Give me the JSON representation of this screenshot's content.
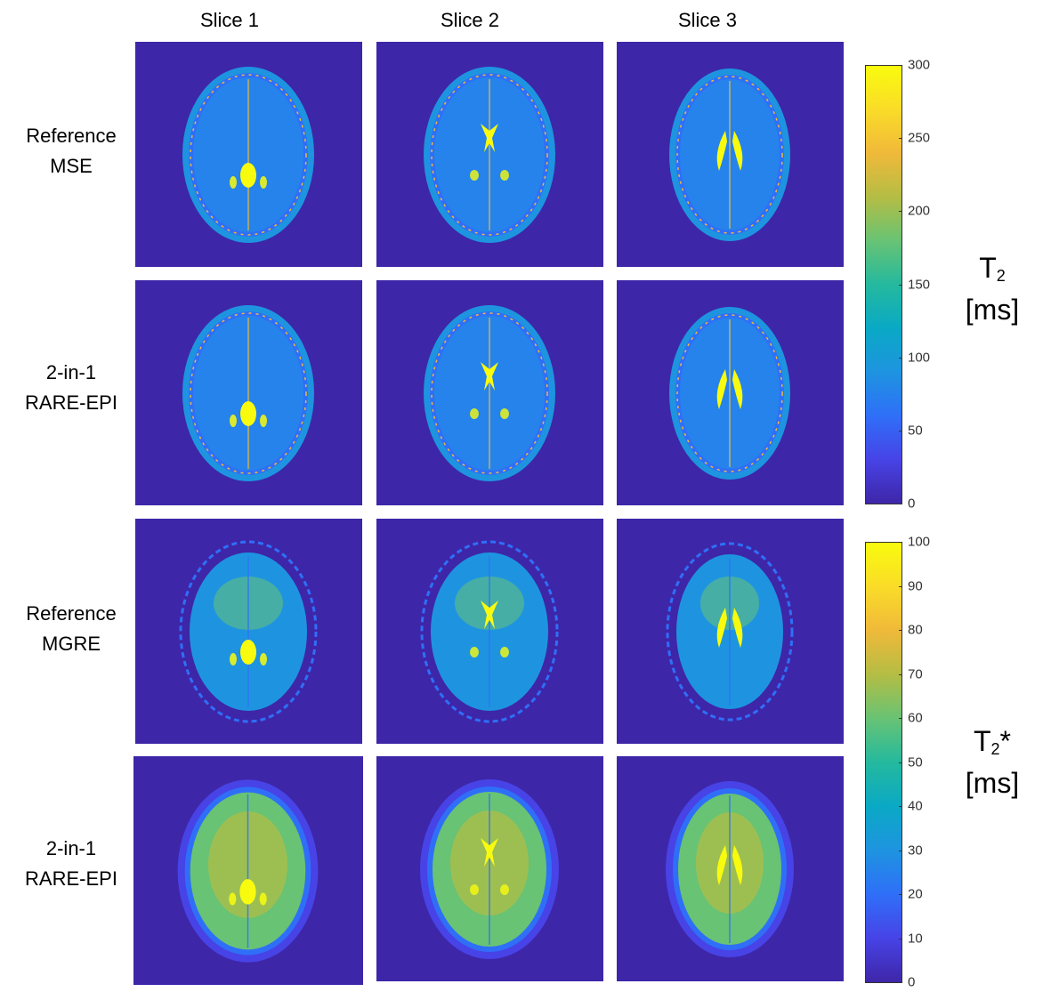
{
  "columns": [
    "Slice 1",
    "Slice 2",
    "Slice 3"
  ],
  "rows": [
    {
      "line1": "Reference",
      "line2": "MSE"
    },
    {
      "line1": "2-in-1",
      "line2": "RARE-EPI"
    },
    {
      "line1": "Reference",
      "line2": "MGRE"
    },
    {
      "line1": "2-in-1",
      "line2": "RARE-EPI"
    }
  ],
  "colorbar_t2": {
    "symbol": "T",
    "subscript": "2",
    "suffix": "",
    "unit": "[ms]",
    "ticks": [
      "300",
      "250",
      "200",
      "150",
      "100",
      "50",
      "0"
    ]
  },
  "colorbar_t2star": {
    "symbol": "T",
    "subscript": "2",
    "suffix": "*",
    "unit": "[ms]",
    "ticks": [
      "100",
      "90",
      "80",
      "70",
      "60",
      "50",
      "40",
      "30",
      "20",
      "10",
      "0"
    ]
  },
  "colors": {
    "background": "#3e26a8",
    "parula": [
      "#3e26a8",
      "#4743e6",
      "#2f6ff8",
      "#1e94e0",
      "#0aa9c5",
      "#24b99e",
      "#68c374",
      "#b4bd44",
      "#f0b93a",
      "#fadc28",
      "#f9fb0e"
    ]
  }
}
